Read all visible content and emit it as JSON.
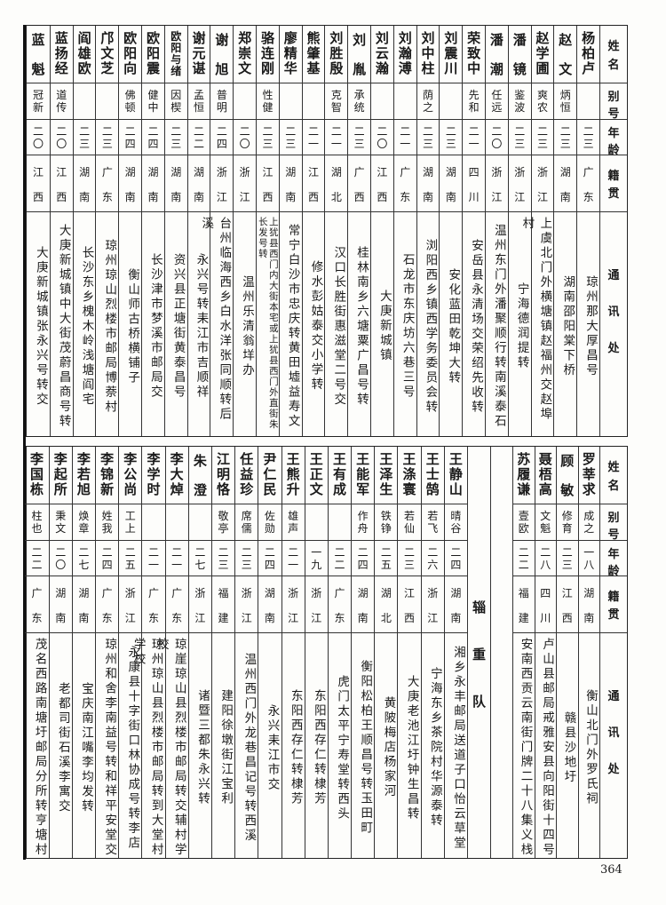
{
  "headers": {
    "name": "姓名",
    "alias": "别号",
    "age": "年龄",
    "native": "籍贯",
    "address": "通讯处"
  },
  "top": [
    {
      "name": "杨柏卢",
      "alias": "",
      "age": "二三",
      "native": "广东",
      "address": "琼州那大厚昌号"
    },
    {
      "name": "赵文",
      "alias": "炳恒",
      "age": "二三",
      "native": "湖南",
      "address": "湖南邵阳棠下桥"
    },
    {
      "name": "赵学圃",
      "alias": "爽农",
      "age": "二三",
      "native": "浙江",
      "address": "上虞北门外横塘镇赵福州交赵埠村"
    },
    {
      "name": "潘镜",
      "alias": "鉴波",
      "age": "二三",
      "native": "浙江",
      "address": "宁海德润提转"
    },
    {
      "name": "潘潮",
      "alias": "任远",
      "age": "二〇",
      "native": "浙江",
      "address": "温州东门外潘聚顺行转南溪泰石"
    },
    {
      "name": "荣致中",
      "alias": "先和",
      "age": "二一",
      "native": "四川",
      "address": "安岳县永清场交荣绍先收转"
    },
    {
      "name": "刘震川",
      "alias": "",
      "age": "二三",
      "native": "湖南",
      "address": "安化蓝田乾坤大转"
    },
    {
      "name": "刘中柱",
      "alias": "荫之",
      "age": "二三",
      "native": "湖南",
      "address": "浏阳西乡镇西学务委员会转"
    },
    {
      "name": "刘瀚溥",
      "alias": "",
      "age": "二一",
      "native": "广东",
      "address": "石龙市东庆坊六巷三号"
    },
    {
      "name": "刘云瀚",
      "alias": "",
      "age": "二〇",
      "native": "江西",
      "address": "大庚新城镇"
    },
    {
      "name": "刘胤",
      "alias": "承统",
      "age": "二三",
      "native": "广西",
      "address": "桂林南乡六塘粟广昌号转"
    },
    {
      "name": "刘胜殷",
      "alias": "克智",
      "age": "二一",
      "native": "湖北",
      "address": "汉口长胜街惠滋堂二号交"
    },
    {
      "name": "熊肇基",
      "alias": "",
      "age": "二一",
      "native": "江西",
      "address": "修水彭姑泰交小学转"
    },
    {
      "name": "廖精华",
      "alias": "",
      "age": "二三",
      "native": "湖南",
      "address": "常宁白沙市忠庆转黄田墟益寿文"
    },
    {
      "name": "骆连刚",
      "alias": "性健",
      "age": "二三",
      "native": "江西",
      "address": "上犹县西门内大街本宅或上犹县西门外直街朱长发号转"
    },
    {
      "name": "郑崇文",
      "alias": "",
      "age": "二〇",
      "native": "浙江",
      "address": "温州乐清翁垟办"
    },
    {
      "name": "谢旭",
      "alias": "普明",
      "age": "二四",
      "native": "浙江",
      "address": "台州临海西乡白水洋张同顺转后溪"
    },
    {
      "name": "谢元谌",
      "alias": "孟恒",
      "age": "二二",
      "native": "湖南",
      "address": "永兴号转耒江市吉顺祥"
    },
    {
      "name": "欧阳与绪",
      "alias": "因楔",
      "age": "二三",
      "native": "湖南",
      "address": "资兴县正塘街黄泰昌号"
    },
    {
      "name": "欧阳震",
      "alias": "健中",
      "age": "二四",
      "native": "湖南",
      "address": "长沙津市梦溪市邮局交"
    },
    {
      "name": "欧阳向",
      "alias": "佛顿",
      "age": "二四",
      "native": "湖南",
      "address": "衡山师古桥横铺子"
    },
    {
      "name": "邝文芝",
      "alias": "",
      "age": "二三",
      "native": "广东",
      "address": "琼州琼山烈楼市邮局博萘村"
    },
    {
      "name": "阎雄欧",
      "alias": "",
      "age": "二三",
      "native": "湖南",
      "address": "长沙东乡槐木岭浅塘阎宅"
    },
    {
      "name": "蓝扬经",
      "alias": "道传",
      "age": "二〇",
      "native": "江西",
      "address": "大庚新城镇中大街茂蔚昌商号转"
    },
    {
      "name": "蓝魁",
      "alias": "冠新",
      "age": "二〇",
      "native": "江西",
      "address": "大庚新城镇张永兴号转交"
    }
  ],
  "bottom_right": [
    {
      "name": "罗莘求",
      "alias": "成之",
      "age": "一八",
      "native": "湖南",
      "address": "衡山北门外罗氏祠"
    },
    {
      "name": "顾敏",
      "alias": "修育",
      "age": "二三",
      "native": "江西",
      "address": "赣县沙地圩"
    },
    {
      "name": "聂梧高",
      "alias": "文魁",
      "age": "二八",
      "native": "四川",
      "address": "卢山县邮局戒雅安县向阳街十四号"
    },
    {
      "name": "苏履谦",
      "alias": "壹欧",
      "age": "二二",
      "native": "福建",
      "address": "安南西贡云南街门牌二十八集义栈"
    }
  ],
  "unit_label": "辎重队",
  "bottom_left": [
    {
      "name": "王静山",
      "alias": "晴谷",
      "age": "二四",
      "native": "湖南",
      "address": "湘乡永丰邮局送道子口怡云草堂"
    },
    {
      "name": "王士鹄",
      "alias": "若飞",
      "age": "二六",
      "native": "浙江",
      "address": "宁海东乡茶院村华源泰转"
    },
    {
      "name": "王涤寰",
      "alias": "若仙",
      "age": "二三",
      "native": "江西",
      "address": "大庚老池江圩钟生昌转"
    },
    {
      "name": "王泽生",
      "alias": "铁铮",
      "age": "二五",
      "native": "湖北",
      "address": "黄陂梅店杨家河"
    },
    {
      "name": "王能军",
      "alias": "作舟",
      "age": "二四",
      "native": "湖南",
      "address": "衡阳松柏王顺昌号转玉田町"
    },
    {
      "name": "王有成",
      "alias": "",
      "age": "二二",
      "native": "广东",
      "address": "虎门太平宁寿堂转西头"
    },
    {
      "name": "王正文",
      "alias": "",
      "age": "一九",
      "native": "浙江",
      "address": "东阳西存仁转棣芳"
    },
    {
      "name": "王熊升",
      "alias": "雄声",
      "age": "二一",
      "native": "浙江",
      "address": "东阳西存仁转棣芳"
    },
    {
      "name": "尹仁民",
      "alias": "佐勋",
      "age": "二四",
      "native": "湖南",
      "address": "永兴耒江市交"
    },
    {
      "name": "任益珍",
      "alias": "席儒",
      "age": "二三",
      "native": "浙江",
      "address": "温州西门外龙巷昌记号转西溪"
    },
    {
      "name": "江明恪",
      "alias": "敬亭",
      "age": "二三",
      "native": "福建",
      "address": "建阳徐墩街江宝利"
    },
    {
      "name": "朱澄",
      "alias": "",
      "age": "二七",
      "native": "浙江",
      "address": "诸暨三都朱永兴转"
    },
    {
      "name": "李大焯",
      "alias": "",
      "age": "二一",
      "native": "广东",
      "address": "琼崖琼山县烈楼市邮局转交辅村学校"
    },
    {
      "name": "李学时",
      "alias": "",
      "age": "二一",
      "native": "广东",
      "address": "琼州琼山县烈楼市邮局转到大堂村学校"
    },
    {
      "name": "李公尚",
      "alias": "工上",
      "age": "二五",
      "native": "浙江",
      "address": "永康县十字街口林协成号转李店"
    },
    {
      "name": "李锦新",
      "alias": "姓我",
      "age": "二四",
      "native": "广东",
      "address": "琼州和舍李南益号转和祥平安堂交"
    },
    {
      "name": "李若旭",
      "alias": "焕章",
      "age": "二七",
      "native": "湖南",
      "address": "宝庆南江嘴李均发转"
    },
    {
      "name": "李起所",
      "alias": "秉文",
      "age": "二〇",
      "native": "湖南",
      "address": "老都司街石溪李寓交"
    },
    {
      "name": "李国栋",
      "alias": "柱也",
      "age": "二二",
      "native": "广东",
      "address": "茂名西路南塘圩邮局分所转亨塘村"
    }
  ],
  "page_number": "364"
}
